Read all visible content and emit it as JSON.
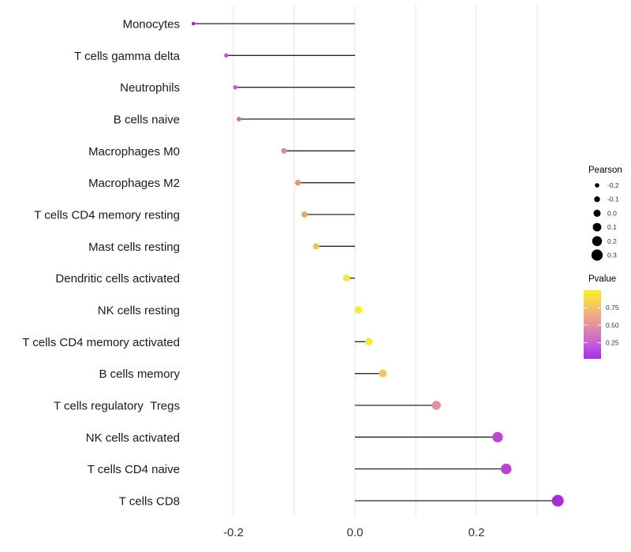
{
  "chart_data": {
    "type": "lollipop",
    "title": "",
    "xlabel": "",
    "ylabel": "",
    "grid": "vertical-only",
    "xlim": [
      -0.296,
      0.364
    ],
    "x_gridlines": [
      -0.2,
      -0.1,
      0.0,
      0.1,
      0.2,
      0.3
    ],
    "x_ticks": [
      {
        "value": -0.2,
        "label": "-0.2"
      },
      {
        "value": 0.0,
        "label": "0.0"
      },
      {
        "value": 0.2,
        "label": "0.2"
      }
    ],
    "size_encoding": "Pearson correlation (larger = higher value)",
    "color_encoding": "Pvalue (plasma gradient: purple = low, yellow = high)",
    "points": [
      {
        "label": "Monocytes",
        "pearson": -0.266,
        "color": "#942dc2"
      },
      {
        "label": "T cells gamma delta",
        "pearson": -0.212,
        "color": "#b55fc2"
      },
      {
        "label": "Neutrophils",
        "pearson": -0.197,
        "color": "#bd63c4"
      },
      {
        "label": "B cells naive",
        "pearson": -0.191,
        "color": "#c468c0"
      },
      {
        "label": "Macrophages M0",
        "pearson": -0.117,
        "color": "#df8b8b"
      },
      {
        "label": "Macrophages M2",
        "pearson": -0.094,
        "color": "#e29a72"
      },
      {
        "label": "T cells CD4 memory resting",
        "pearson": -0.083,
        "color": "#e8a964"
      },
      {
        "label": "Mast cells resting",
        "pearson": -0.064,
        "color": "#ecc35b"
      },
      {
        "label": "Dendritic cells activated",
        "pearson": -0.014,
        "color": "#f3e83b"
      },
      {
        "label": "NK cells resting",
        "pearson": 0.006,
        "color": "#f6ee28"
      },
      {
        "label": "T cells CD4 memory activated",
        "pearson": 0.023,
        "color": "#f5e930"
      },
      {
        "label": "B cells memory",
        "pearson": 0.046,
        "color": "#eec94e"
      },
      {
        "label": "T cells regulatory  Tregs",
        "pearson": 0.134,
        "color": "#e2909e"
      },
      {
        "label": "NK cells activated",
        "pearson": 0.235,
        "color": "#bb46cf"
      },
      {
        "label": "T cells CD4 naive",
        "pearson": 0.249,
        "color": "#b843d1"
      },
      {
        "label": "T cells CD8",
        "pearson": 0.334,
        "color": "#a52fd6"
      }
    ]
  },
  "legend": {
    "pearson": {
      "title": "Pearson",
      "entries": [
        {
          "label": "-0.2",
          "value": -0.2
        },
        {
          "label": "-0.1",
          "value": -0.1
        },
        {
          "label": "0.0",
          "value": 0.0
        },
        {
          "label": "0.1",
          "value": 0.1
        },
        {
          "label": "0.2",
          "value": 0.2
        },
        {
          "label": "0.3",
          "value": 0.3
        }
      ],
      "dot_color": "#000000"
    },
    "pvalue": {
      "title": "Pvalue",
      "ticks": [
        {
          "label": "0.75",
          "value": 0.75
        },
        {
          "label": "0.50",
          "value": 0.5
        },
        {
          "label": "0.25",
          "value": 0.25
        }
      ],
      "gradient_top_to_bottom": [
        "#f9ee2c",
        "#f6d84a",
        "#f0bb74",
        "#e9a090",
        "#dd86ad",
        "#cd6bc8",
        "#b94cdf",
        "#a52de9"
      ]
    }
  },
  "colors": {
    "background": "#ffffff",
    "gridline": "#e4e4e4",
    "stem": "#262626",
    "axis_text": "#333333",
    "category_text": "#1a1a1a"
  }
}
